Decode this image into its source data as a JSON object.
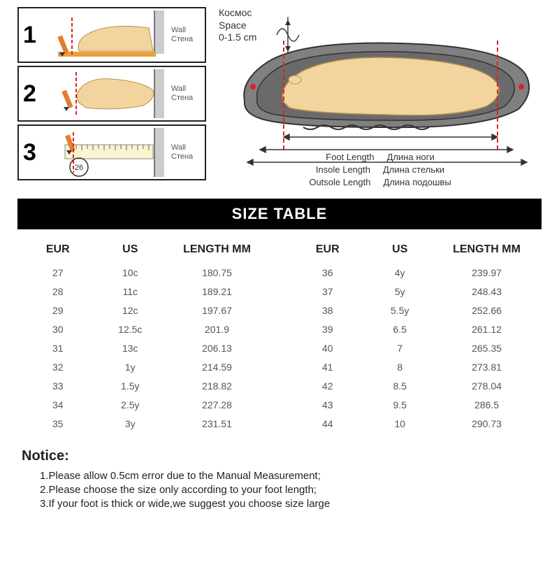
{
  "colors": {
    "black": "#000000",
    "gray_text": "#555555",
    "skin": "#f2d59e",
    "sole_gray": "#808080",
    "sole_dark": "#606060",
    "pencil_orange": "#e08030",
    "ruler_cream": "#faf4d0",
    "red": "#e02020",
    "wall_hatch": "#cccccc"
  },
  "steps": [
    {
      "num": "1",
      "wall_en": "Wall",
      "wall_ru": "Стена"
    },
    {
      "num": "2",
      "wall_en": "Wall",
      "wall_ru": "Стена"
    },
    {
      "num": "3",
      "wall_en": "Wall",
      "wall_ru": "Стена",
      "ruler_value": "26"
    }
  ],
  "diagram": {
    "space_ru": "Космос",
    "space_en": "Space",
    "space_range": "0-1.5 cm",
    "foot_en": "Foot Length",
    "foot_ru": "Длина ноги",
    "insole_en": "Insole Length",
    "insole_ru": "Длина стельки",
    "outsole_en": "Outsole Length",
    "outsole_ru": "Длина подошвы"
  },
  "table": {
    "title": "SIZE TABLE",
    "headers": {
      "eur": "EUR",
      "us": "US",
      "len": "LENGTH MM"
    },
    "left": [
      {
        "eur": "27",
        "us": "10c",
        "len": "180.75"
      },
      {
        "eur": "28",
        "us": "11c",
        "len": "189.21"
      },
      {
        "eur": "29",
        "us": "12c",
        "len": "197.67"
      },
      {
        "eur": "30",
        "us": "12.5c",
        "len": "201.9"
      },
      {
        "eur": "31",
        "us": "13c",
        "len": "206.13"
      },
      {
        "eur": "32",
        "us": "1y",
        "len": "214.59"
      },
      {
        "eur": "33",
        "us": "1.5y",
        "len": "218.82"
      },
      {
        "eur": "34",
        "us": "2.5y",
        "len": "227.28"
      },
      {
        "eur": "35",
        "us": "3y",
        "len": "231.51"
      }
    ],
    "right": [
      {
        "eur": "36",
        "us": "4y",
        "len": "239.97"
      },
      {
        "eur": "37",
        "us": "5y",
        "len": "248.43"
      },
      {
        "eur": "38",
        "us": "5.5y",
        "len": "252.66"
      },
      {
        "eur": "39",
        "us": "6.5",
        "len": "261.12"
      },
      {
        "eur": "40",
        "us": "7",
        "len": "265.35"
      },
      {
        "eur": "41",
        "us": "8",
        "len": "273.81"
      },
      {
        "eur": "42",
        "us": "8.5",
        "len": "278.04"
      },
      {
        "eur": "43",
        "us": "9.5",
        "len": "286.5"
      },
      {
        "eur": "44",
        "us": "10",
        "len": "290.73"
      }
    ]
  },
  "notice": {
    "title": "Notice:",
    "lines": [
      "1.Please allow 0.5cm error due to the Manual Measurement;",
      "2.Please choose the size only according to your foot length;",
      "3.If your foot is thick or wide,we suggest  you  choose size large"
    ]
  }
}
